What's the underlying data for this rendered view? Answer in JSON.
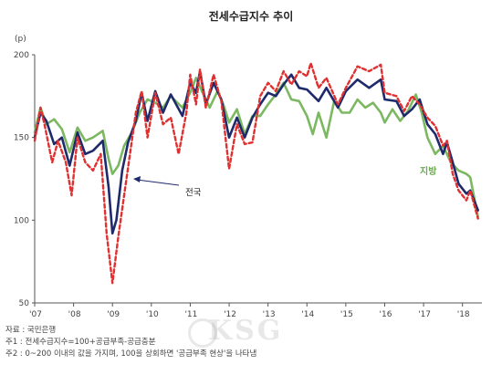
{
  "chart_data": {
    "type": "line",
    "title": "전세수급지수 추이",
    "ylabel": "(p)",
    "ylim": [
      50,
      200
    ],
    "yticks": [
      50,
      100,
      150,
      200
    ],
    "xlim": [
      2007,
      2018.5
    ],
    "xticks": [
      {
        "x": 2007,
        "label": "'07"
      },
      {
        "x": 2008,
        "label": "'08"
      },
      {
        "x": 2009,
        "label": "'09"
      },
      {
        "x": 2010,
        "label": "'10"
      },
      {
        "x": 2011,
        "label": "'11"
      },
      {
        "x": 2012,
        "label": "'12"
      },
      {
        "x": 2013,
        "label": "'13"
      },
      {
        "x": 2014,
        "label": "'14"
      },
      {
        "x": 2015,
        "label": "'15"
      },
      {
        "x": 2016,
        "label": "'16"
      },
      {
        "x": 2017,
        "label": "'17"
      },
      {
        "x": 2018,
        "label": "'18"
      }
    ],
    "series": [
      {
        "name": "전국",
        "color": "#1f2a6b",
        "style": "solid",
        "points": [
          [
            2007.0,
            150
          ],
          [
            2007.15,
            165
          ],
          [
            2007.3,
            160
          ],
          [
            2007.5,
            146
          ],
          [
            2007.7,
            150
          ],
          [
            2007.9,
            133
          ],
          [
            2008.1,
            153
          ],
          [
            2008.3,
            140
          ],
          [
            2008.5,
            142
          ],
          [
            2008.75,
            148
          ],
          [
            2008.9,
            120
          ],
          [
            2009.0,
            92
          ],
          [
            2009.1,
            100
          ],
          [
            2009.25,
            130
          ],
          [
            2009.4,
            147
          ],
          [
            2009.6,
            160
          ],
          [
            2009.75,
            177
          ],
          [
            2009.9,
            160
          ],
          [
            2010.1,
            178
          ],
          [
            2010.3,
            165
          ],
          [
            2010.5,
            176
          ],
          [
            2010.8,
            163
          ],
          [
            2011.0,
            183
          ],
          [
            2011.15,
            177
          ],
          [
            2011.25,
            190
          ],
          [
            2011.4,
            170
          ],
          [
            2011.6,
            183
          ],
          [
            2011.8,
            173
          ],
          [
            2012.0,
            150
          ],
          [
            2012.2,
            162
          ],
          [
            2012.4,
            150
          ],
          [
            2012.6,
            162
          ],
          [
            2012.8,
            170
          ],
          [
            2013.0,
            177
          ],
          [
            2013.2,
            175
          ],
          [
            2013.4,
            182
          ],
          [
            2013.6,
            188
          ],
          [
            2013.8,
            180
          ],
          [
            2014.0,
            179
          ],
          [
            2014.3,
            172
          ],
          [
            2014.5,
            180
          ],
          [
            2014.8,
            168
          ],
          [
            2015.0,
            178
          ],
          [
            2015.3,
            185
          ],
          [
            2015.6,
            180
          ],
          [
            2015.9,
            185
          ],
          [
            2016.0,
            173
          ],
          [
            2016.3,
            172
          ],
          [
            2016.5,
            163
          ],
          [
            2016.7,
            167
          ],
          [
            2016.9,
            173
          ],
          [
            2017.1,
            158
          ],
          [
            2017.3,
            152
          ],
          [
            2017.5,
            140
          ],
          [
            2017.6,
            147
          ],
          [
            2017.75,
            135
          ],
          [
            2017.9,
            122
          ],
          [
            2018.1,
            116
          ],
          [
            2018.2,
            118
          ],
          [
            2018.4,
            106
          ]
        ]
      },
      {
        "name": "",
        "color": "#e03030",
        "style": "dashed",
        "points": [
          [
            2007.0,
            148
          ],
          [
            2007.15,
            168
          ],
          [
            2007.25,
            158
          ],
          [
            2007.45,
            135
          ],
          [
            2007.6,
            148
          ],
          [
            2007.8,
            135
          ],
          [
            2007.95,
            115
          ],
          [
            2008.1,
            150
          ],
          [
            2008.3,
            135
          ],
          [
            2008.5,
            130
          ],
          [
            2008.7,
            140
          ],
          [
            2008.85,
            92
          ],
          [
            2009.0,
            62
          ],
          [
            2009.15,
            90
          ],
          [
            2009.3,
            115
          ],
          [
            2009.45,
            140
          ],
          [
            2009.6,
            165
          ],
          [
            2009.75,
            178
          ],
          [
            2009.9,
            150
          ],
          [
            2010.1,
            177
          ],
          [
            2010.3,
            158
          ],
          [
            2010.5,
            162
          ],
          [
            2010.7,
            140
          ],
          [
            2010.9,
            165
          ],
          [
            2011.0,
            188
          ],
          [
            2011.15,
            170
          ],
          [
            2011.25,
            191
          ],
          [
            2011.4,
            168
          ],
          [
            2011.6,
            188
          ],
          [
            2011.8,
            172
          ],
          [
            2012.0,
            131
          ],
          [
            2012.2,
            158
          ],
          [
            2012.4,
            146
          ],
          [
            2012.6,
            147
          ],
          [
            2012.8,
            175
          ],
          [
            2013.0,
            183
          ],
          [
            2013.2,
            178
          ],
          [
            2013.4,
            190
          ],
          [
            2013.6,
            182
          ],
          [
            2013.8,
            190
          ],
          [
            2014.0,
            187
          ],
          [
            2014.1,
            195
          ],
          [
            2014.3,
            180
          ],
          [
            2014.5,
            186
          ],
          [
            2014.8,
            170
          ],
          [
            2015.0,
            180
          ],
          [
            2015.3,
            193
          ],
          [
            2015.6,
            190
          ],
          [
            2015.9,
            194
          ],
          [
            2016.0,
            177
          ],
          [
            2016.3,
            175
          ],
          [
            2016.5,
            166
          ],
          [
            2016.7,
            175
          ],
          [
            2016.9,
            170
          ],
          [
            2017.1,
            162
          ],
          [
            2017.3,
            157
          ],
          [
            2017.5,
            145
          ],
          [
            2017.6,
            148
          ],
          [
            2017.75,
            128
          ],
          [
            2017.9,
            118
          ],
          [
            2018.1,
            112
          ],
          [
            2018.2,
            118
          ],
          [
            2018.4,
            101
          ]
        ]
      },
      {
        "name": "지방",
        "color": "#7cb861",
        "style": "solid",
        "points": [
          [
            2007.0,
            153
          ],
          [
            2007.15,
            168
          ],
          [
            2007.3,
            158
          ],
          [
            2007.5,
            161
          ],
          [
            2007.7,
            155
          ],
          [
            2007.9,
            141
          ],
          [
            2008.1,
            156
          ],
          [
            2008.3,
            148
          ],
          [
            2008.5,
            150
          ],
          [
            2008.75,
            154
          ],
          [
            2008.9,
            137
          ],
          [
            2009.0,
            128
          ],
          [
            2009.15,
            133
          ],
          [
            2009.3,
            145
          ],
          [
            2009.5,
            153
          ],
          [
            2009.7,
            165
          ],
          [
            2009.9,
            173
          ],
          [
            2010.1,
            171
          ],
          [
            2010.3,
            168
          ],
          [
            2010.5,
            175
          ],
          [
            2010.8,
            168
          ],
          [
            2011.0,
            177
          ],
          [
            2011.15,
            186
          ],
          [
            2011.3,
            178
          ],
          [
            2011.5,
            168
          ],
          [
            2011.7,
            178
          ],
          [
            2011.85,
            170
          ],
          [
            2012.0,
            159
          ],
          [
            2012.2,
            167
          ],
          [
            2012.4,
            152
          ],
          [
            2012.6,
            163
          ],
          [
            2012.8,
            163
          ],
          [
            2013.0,
            170
          ],
          [
            2013.2,
            176
          ],
          [
            2013.4,
            183
          ],
          [
            2013.6,
            173
          ],
          [
            2013.8,
            172
          ],
          [
            2014.0,
            163
          ],
          [
            2014.15,
            152
          ],
          [
            2014.3,
            165
          ],
          [
            2014.5,
            150
          ],
          [
            2014.7,
            172
          ],
          [
            2014.9,
            165
          ],
          [
            2015.1,
            165
          ],
          [
            2015.3,
            173
          ],
          [
            2015.5,
            168
          ],
          [
            2015.7,
            171
          ],
          [
            2015.9,
            165
          ],
          [
            2016.0,
            159
          ],
          [
            2016.2,
            167
          ],
          [
            2016.4,
            160
          ],
          [
            2016.6,
            166
          ],
          [
            2016.8,
            176
          ],
          [
            2016.95,
            165
          ],
          [
            2017.1,
            150
          ],
          [
            2017.3,
            140
          ],
          [
            2017.5,
            145
          ],
          [
            2017.7,
            135
          ],
          [
            2017.9,
            130
          ],
          [
            2018.1,
            128
          ],
          [
            2018.2,
            126
          ],
          [
            2018.4,
            102
          ]
        ]
      }
    ],
    "annotations": [
      {
        "text": "전국",
        "series": "전국"
      },
      {
        "text": "지방",
        "series": "지방"
      }
    ],
    "grid": false,
    "notes": [
      "자료 : 국민은행",
      "주1 : 전세수급지수=100+공급부족-공급충분",
      "주2 : 0~200 이내의 값을 가지며, 100을 상회하면 '공급부족 현상'을 나타냄"
    ]
  },
  "watermark": "KSG"
}
